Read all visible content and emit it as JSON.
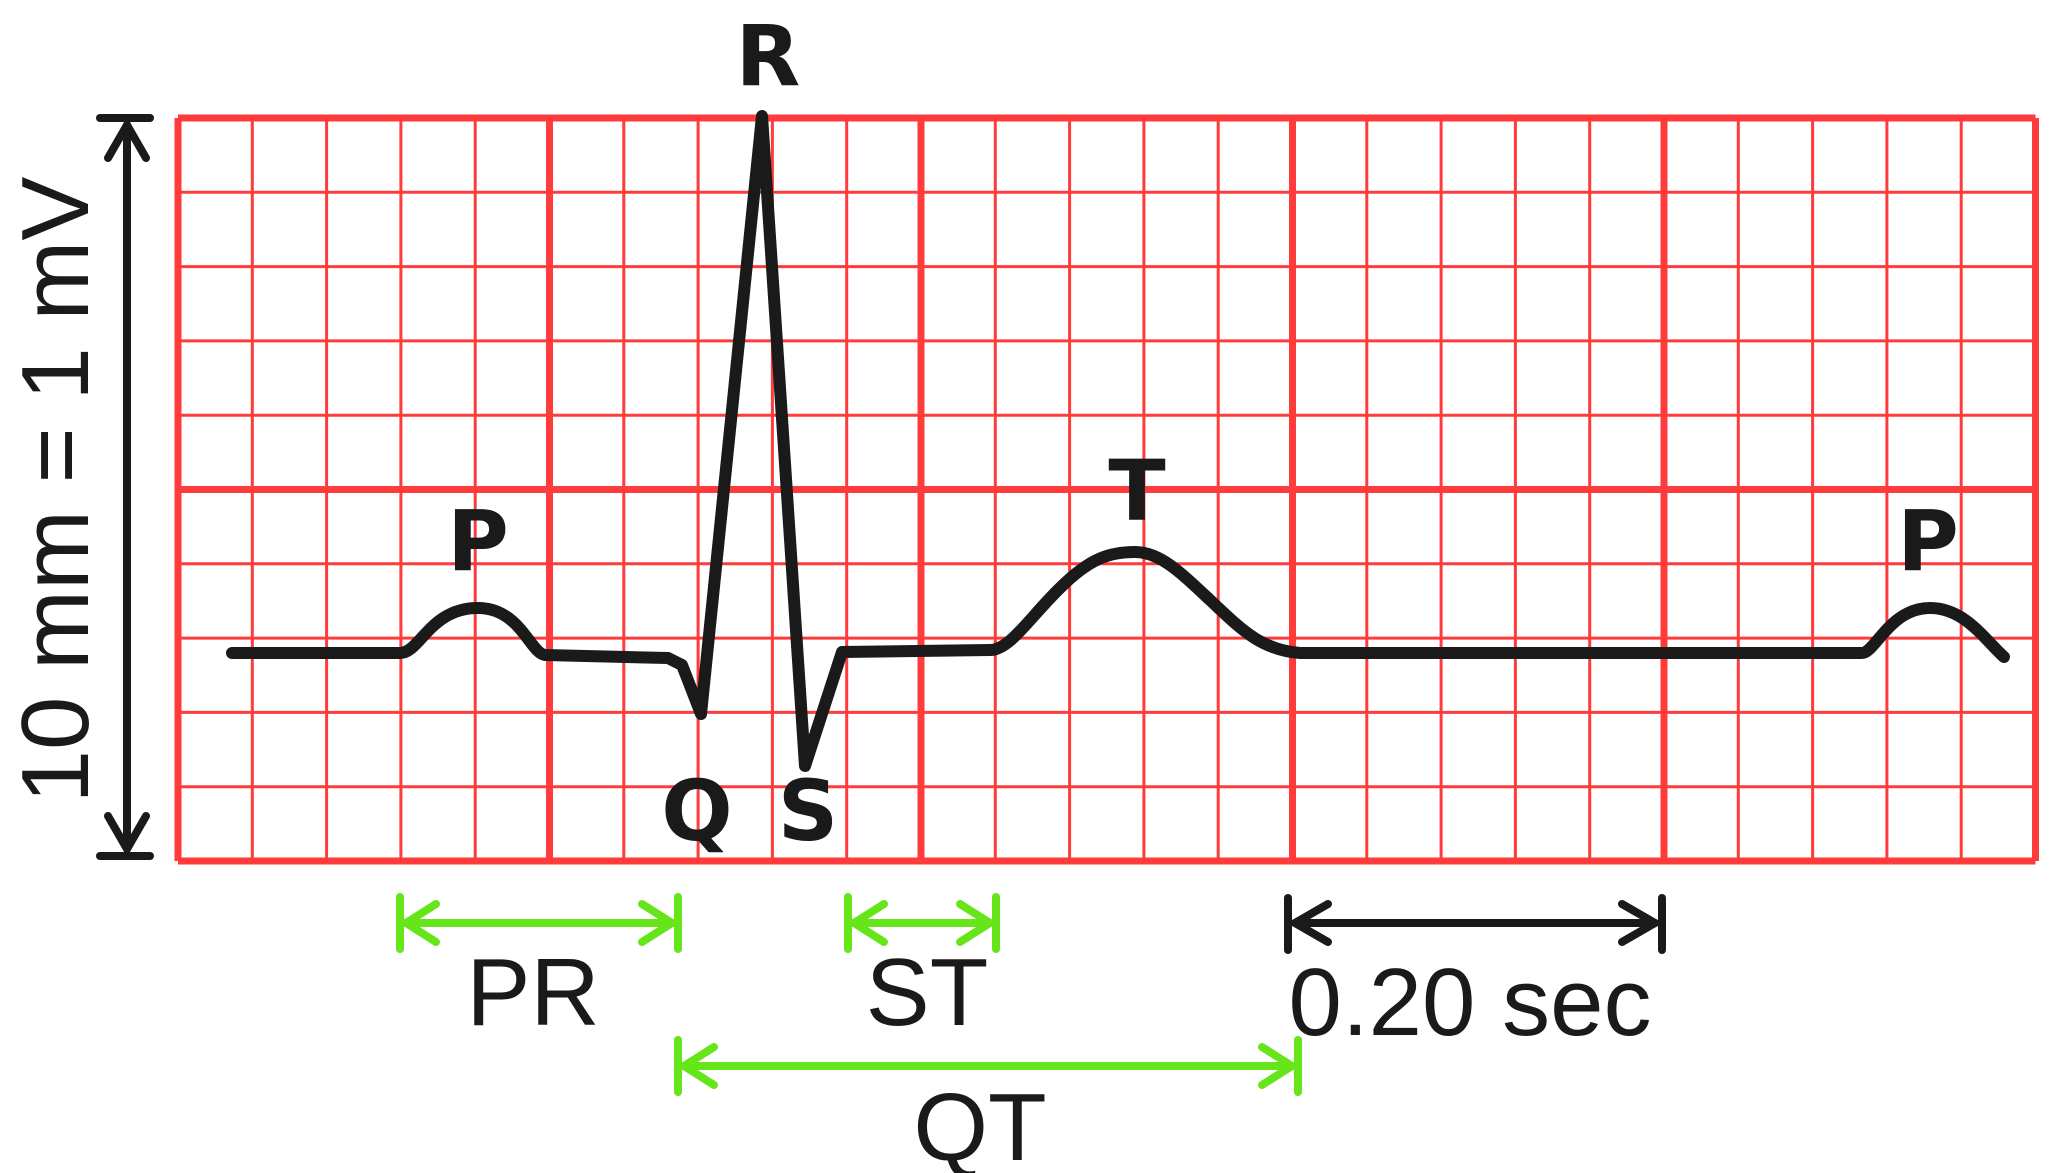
{
  "calibration_label": "10 mm = 1 mV",
  "waves": {
    "p1": "P",
    "q": "Q",
    "r": "R",
    "s": "S",
    "t": "T",
    "p2": "P"
  },
  "intervals": {
    "pr": "PR",
    "st": "ST",
    "qt": "QT"
  },
  "time_scale": "0.20 sec",
  "colors": {
    "grid": "#ff3b3b",
    "trace": "#1a1a1a",
    "interval_arrow": "#66e61a",
    "scale_arrow": "#1a1a1a"
  }
}
